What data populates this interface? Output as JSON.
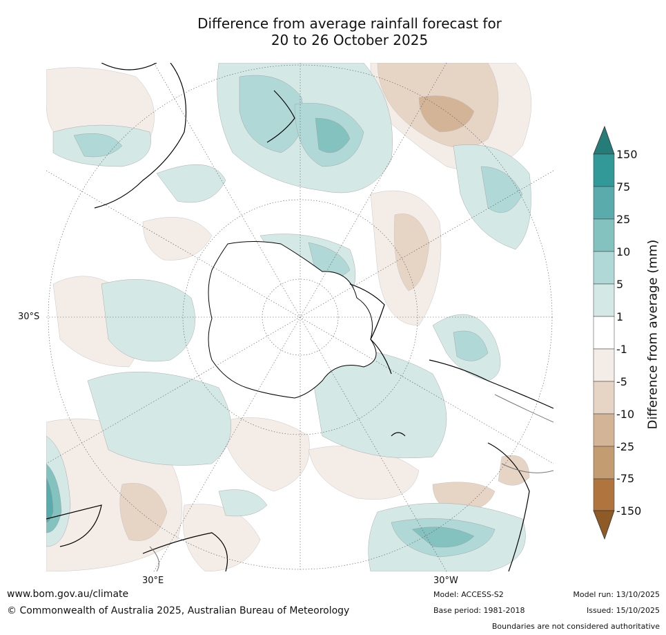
{
  "title": {
    "line1": "Difference from average rainfall forecast for",
    "line2": "20 to 26 October 2025"
  },
  "map": {
    "lat_label": "30°S",
    "lon_labels": [
      "30°E",
      "30°W"
    ]
  },
  "colorbar": {
    "label": "Difference from average (mm)",
    "ticks": [
      "150",
      "75",
      "25",
      "10",
      "5",
      "1",
      "-1",
      "-5",
      "-10",
      "-25",
      "-75",
      "-150"
    ],
    "colors": {
      "wet_extreme": "#267c78",
      "wet_75_150": "#329898",
      "wet_25_75": "#5aacac",
      "wet_10_25": "#84c2c0",
      "wet_5_10": "#b0d8d6",
      "wet_1_5": "#d4e8e6",
      "neutral": "#ffffff",
      "dry_1_5": "#f4ece6",
      "dry_5_10": "#e6d4c4",
      "dry_10_25": "#d4b496",
      "dry_25_75": "#c39c72",
      "dry_75_150": "#b0743e",
      "dry_extreme": "#8e5a26"
    }
  },
  "footer": {
    "url": "www.bom.gov.au/climate",
    "copyright": "© Commonwealth of Australia 2025, Australian Bureau of Meteorology",
    "model": "Model: ACCESS-S2",
    "base_period": "Base period: 1981-2018",
    "model_run": "Model run: 13/10/2025",
    "issued": "Issued: 15/10/2025",
    "disclaimer": "Boundaries are not considered authoritative"
  }
}
